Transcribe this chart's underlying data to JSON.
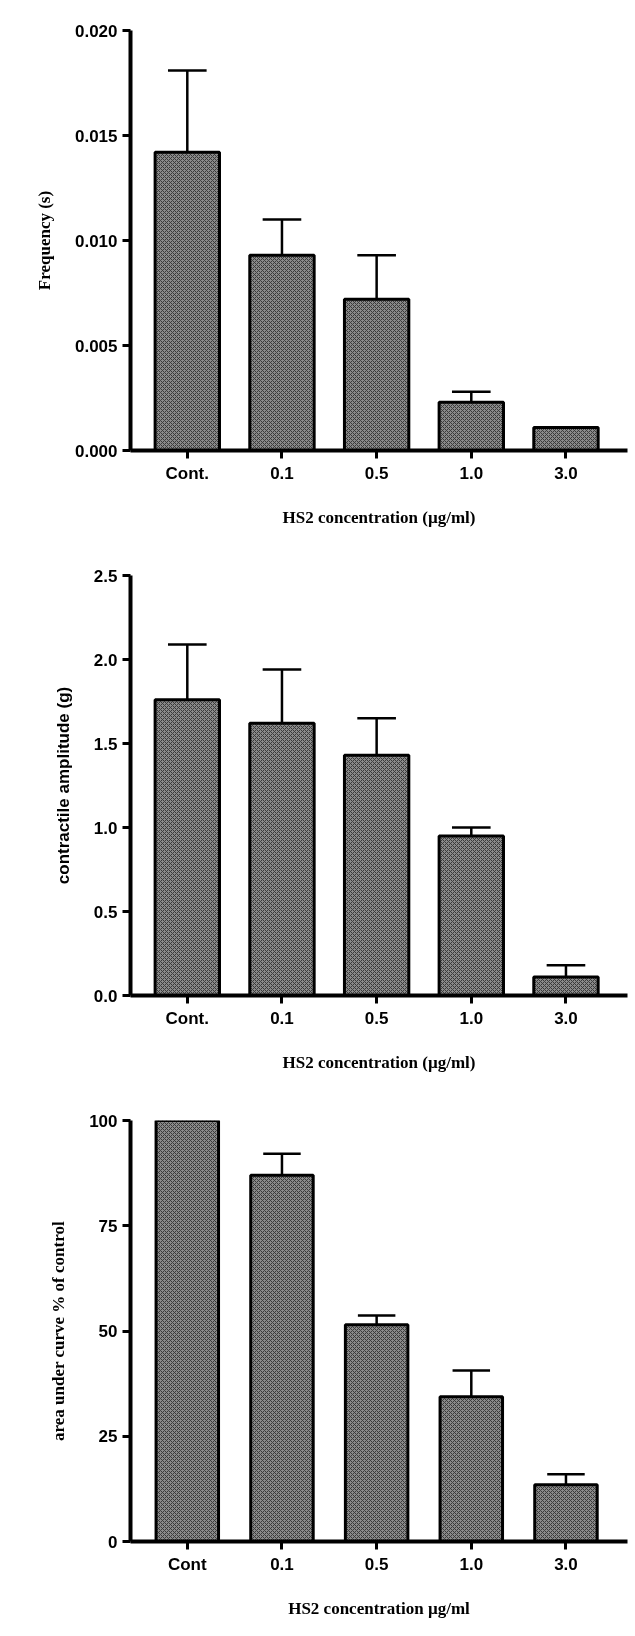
{
  "chart_data": [
    {
      "type": "bar",
      "xlabel": "HS2 concentration (µg/ml)",
      "ylabel": "Frequency (s)",
      "categories": [
        "Cont.",
        "0.1",
        "0.5",
        "1.0",
        "3.0"
      ],
      "values": [
        0.0142,
        0.0093,
        0.0072,
        0.0023,
        0.0011
      ],
      "errors": [
        [
          0.0142,
          0.0181
        ],
        [
          0.0093,
          0.011
        ],
        [
          0.0072,
          0.0093
        ],
        [
          0.0023,
          0.0028
        ],
        null
      ],
      "color": "#8a8a8a",
      "ylim": [
        0,
        0.02
      ],
      "yticks": [
        {
          "value": 0,
          "label": "0.000"
        },
        {
          "value": 0.005,
          "label": "0.005"
        },
        {
          "value": 0.01,
          "label": "0.010"
        },
        {
          "value": 0.015,
          "label": "0.015"
        },
        {
          "value": 0.02,
          "label": "0.020"
        }
      ],
      "grid": false
    },
    {
      "type": "bar",
      "xlabel": "HS2 concentration (µg/ml)",
      "ylabel": "contractile amplitude (g)",
      "categories": [
        "Cont.",
        "0.1",
        "0.5",
        "1.0",
        "3.0"
      ],
      "values": [
        1.76,
        1.62,
        1.43,
        0.95,
        0.11
      ],
      "errors": [
        [
          1.76,
          2.09
        ],
        [
          1.62,
          1.94
        ],
        [
          1.43,
          1.65
        ],
        [
          0.95,
          1.0
        ],
        [
          0.11,
          0.18
        ]
      ],
      "color": "#8a8a8a",
      "ylim": [
        0,
        2.5
      ],
      "yticks": [
        {
          "value": 0,
          "label": "0.0"
        },
        {
          "value": 0.5,
          "label": "0.5"
        },
        {
          "value": 1,
          "label": "1.0"
        },
        {
          "value": 1.5,
          "label": "1.5"
        },
        {
          "value": 2,
          "label": "2.0"
        },
        {
          "value": 2.5,
          "label": "2.5"
        }
      ],
      "grid": false
    },
    {
      "type": "bar",
      "xlabel": "HS2 concentration µg/ml",
      "ylabel": "area under curve % of control",
      "categories": [
        "Cont",
        "0.1",
        "0.5",
        "1.0",
        "3.0"
      ],
      "values": [
        100,
        87,
        51.5,
        34.4,
        13.5
      ],
      "errors": [
        null,
        [
          87,
          92.1
        ],
        [
          51.5,
          53.7
        ],
        [
          34.4,
          40.6
        ],
        [
          13.5,
          16.0
        ]
      ],
      "color": "#8a8a8a",
      "ylim": [
        0,
        100
      ],
      "yticks": [
        0,
        25,
        50,
        75,
        100
      ],
      "grid": false
    }
  ]
}
